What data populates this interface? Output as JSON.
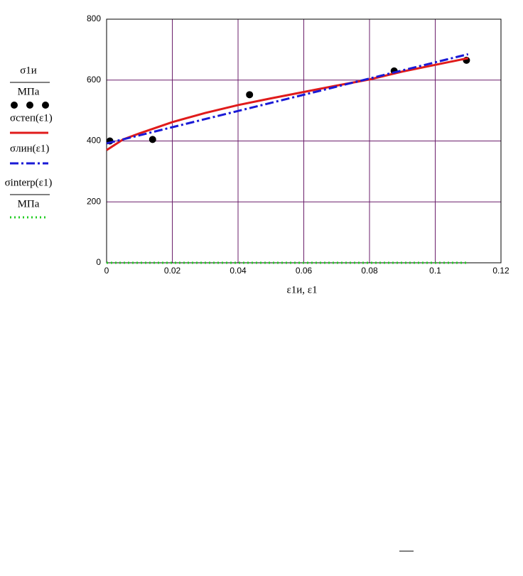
{
  "chart_data": {
    "type": "line",
    "x_label": "ε1и, ε1",
    "xlim": [
      0,
      0.12
    ],
    "xticks": [
      0,
      0.02,
      0.04,
      0.06,
      0.08,
      0.1,
      0.12
    ],
    "ylim": [
      0,
      800
    ],
    "yticks": [
      0,
      200,
      400,
      600,
      800
    ],
    "grid": true,
    "grid_color": "#6b1f6b",
    "series": [
      {
        "name": "σ1и",
        "denominator": "МПа",
        "style": "dots",
        "color": "#000000",
        "x": [
          0.001,
          0.014,
          0.0435,
          0.0875,
          0.1095
        ],
        "values": [
          400,
          405,
          552,
          630,
          665
        ]
      },
      {
        "name": "σстеп(ε1)",
        "style": "solid",
        "color": "#e01b1b",
        "x": [
          0,
          0.005,
          0.01,
          0.02,
          0.03,
          0.04,
          0.05,
          0.06,
          0.07,
          0.08,
          0.09,
          0.1,
          0.11
        ],
        "values": [
          370,
          405,
          425,
          462,
          492,
          518,
          540,
          561,
          582,
          602,
          628,
          650,
          672
        ]
      },
      {
        "name": "σлин(ε1)",
        "style": "dashdot",
        "color": "#1a1ad6",
        "x": [
          0,
          0.11
        ],
        "values": [
          392,
          685
        ]
      },
      {
        "name": "σinterp(ε1)",
        "denominator": "МПа",
        "style": "dotted",
        "color": "#22cc22",
        "x": [
          0,
          0.11
        ],
        "values": [
          0,
          0
        ]
      }
    ]
  }
}
